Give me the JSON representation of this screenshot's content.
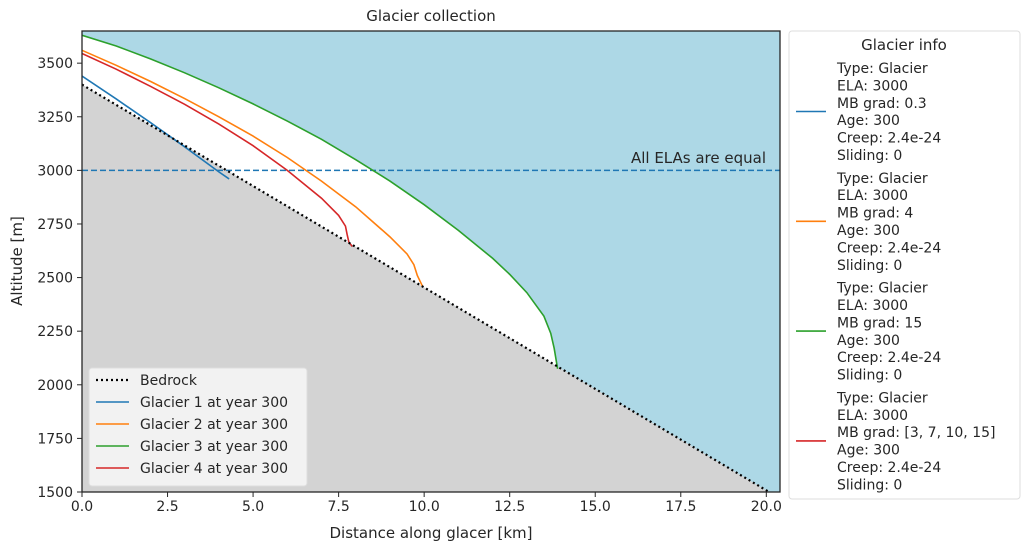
{
  "chart_data": {
    "type": "line",
    "title": "Glacier collection",
    "xlabel": "Distance along glacer [km]",
    "ylabel": "Altitude [m]",
    "xlim": [
      0,
      20.4
    ],
    "ylim": [
      1500,
      3650
    ],
    "xticks": [
      "0.0",
      "2.5",
      "5.0",
      "7.5",
      "10.0",
      "12.5",
      "15.0",
      "17.5",
      "20.0"
    ],
    "yticks": [
      "1500",
      "1750",
      "2000",
      "2250",
      "2500",
      "2750",
      "3000",
      "3250",
      "3500"
    ],
    "colors": {
      "sky": "#add8e6",
      "ground": "#d3d3d3",
      "ice": "#ffffff"
    },
    "ela_line": {
      "value": 3000,
      "label": "All ELAs are equal",
      "color": "#1f77b4"
    },
    "bedrock": {
      "name": "Bedrock",
      "color": "#000000",
      "x": [
        0,
        20.4
      ],
      "y": [
        3400,
        1470
      ]
    },
    "series": [
      {
        "name": "Glacier 1 at year 300",
        "color": "#1f77b4",
        "x": [
          0,
          1,
          2,
          3,
          4.0,
          4.3
        ],
        "y": [
          3440,
          3333,
          3223,
          3110,
          2993,
          2960
        ]
      },
      {
        "name": "Glacier 2 at year 300",
        "color": "#ff7f0e",
        "x": [
          0,
          1,
          2,
          3,
          4,
          5,
          6,
          7,
          8,
          9,
          9.5,
          9.7,
          9.8,
          9.95
        ],
        "y": [
          3560,
          3490,
          3415,
          3335,
          3250,
          3160,
          3060,
          2950,
          2830,
          2690,
          2610,
          2560,
          2510,
          2460
        ]
      },
      {
        "name": "Glacier 3 at year 300",
        "color": "#2ca02c",
        "x": [
          0,
          1,
          2,
          3,
          4,
          5,
          6,
          7,
          8,
          9,
          10,
          11,
          12,
          12.5,
          13,
          13.5,
          13.7,
          13.8,
          13.9
        ],
        "y": [
          3630,
          3580,
          3520,
          3455,
          3385,
          3310,
          3230,
          3145,
          3050,
          2950,
          2840,
          2720,
          2590,
          2515,
          2430,
          2320,
          2240,
          2170,
          2075
        ]
      },
      {
        "name": "Glacier 4 at year 300",
        "color": "#d62728",
        "x": [
          0,
          1,
          2,
          3,
          4,
          5,
          6,
          7,
          7.5,
          7.7,
          7.75,
          7.8,
          7.9
        ],
        "y": [
          3545,
          3472,
          3392,
          3308,
          3216,
          3115,
          3000,
          2870,
          2790,
          2740,
          2700,
          2665,
          2645
        ]
      }
    ],
    "legend_placement": "lower-left",
    "grid": false,
    "info_legend": {
      "title": "Glacier info",
      "entries": [
        {
          "color": "#1f77b4",
          "lines": [
            "Type: Glacier",
            "ELA: 3000",
            "MB grad: 0.3",
            "Age: 300",
            "Creep: 2.4e-24",
            "Sliding: 0"
          ]
        },
        {
          "color": "#ff7f0e",
          "lines": [
            "Type: Glacier",
            "ELA: 3000",
            "MB grad: 4",
            "Age: 300",
            "Creep: 2.4e-24",
            "Sliding: 0"
          ]
        },
        {
          "color": "#2ca02c",
          "lines": [
            "Type: Glacier",
            "ELA: 3000",
            "MB grad: 15",
            "Age: 300",
            "Creep: 2.4e-24",
            "Sliding: 0"
          ]
        },
        {
          "color": "#d62728",
          "lines": [
            "Type: Glacier",
            "ELA: 3000",
            "MB grad: [3, 7, 10, 15]",
            "Age: 300",
            "Creep: 2.4e-24",
            "Sliding: 0"
          ]
        }
      ]
    }
  }
}
